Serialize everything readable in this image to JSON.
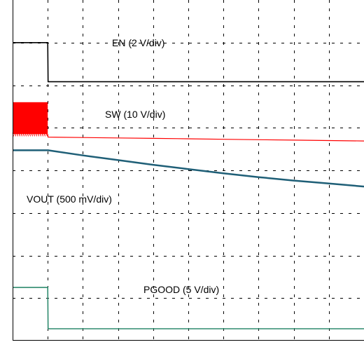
{
  "chart_data": {
    "type": "line",
    "grid": true,
    "x_divisions": 10,
    "y_divisions": 8,
    "x": [
      0,
      1,
      1.01,
      2,
      3,
      4,
      5,
      6,
      7,
      8,
      9,
      10
    ],
    "series": [
      {
        "name": "EN (2 V/div)",
        "color": "#000000",
        "values": [
          7.0,
          7.0,
          6.08,
          6.08,
          6.08,
          6.08,
          6.08,
          6.08,
          6.08,
          6.08,
          6.08,
          6.08
        ]
      },
      {
        "name": "SW (10 V/div)",
        "color": "#ff0000",
        "switching": true,
        "band": [
          4.85,
          5.6
        ],
        "values": [
          4.85,
          4.85,
          4.78,
          4.77,
          4.76,
          4.75,
          4.74,
          4.73,
          4.72,
          4.71,
          4.7,
          4.69
        ]
      },
      {
        "name": "VOUT (500 mV/div)",
        "color": "#1f5f77",
        "values": [
          4.47,
          4.47,
          4.47,
          4.35,
          4.24,
          4.13,
          4.03,
          3.93,
          3.84,
          3.76,
          3.69,
          3.62
        ]
      },
      {
        "name": "PGOOD (5 V/div)",
        "color": "#2e8b6e",
        "values": [
          1.25,
          1.25,
          0.28,
          0.28,
          0.28,
          0.28,
          0.28,
          0.28,
          0.28,
          0.28,
          0.28,
          0.28
        ]
      }
    ]
  }
}
